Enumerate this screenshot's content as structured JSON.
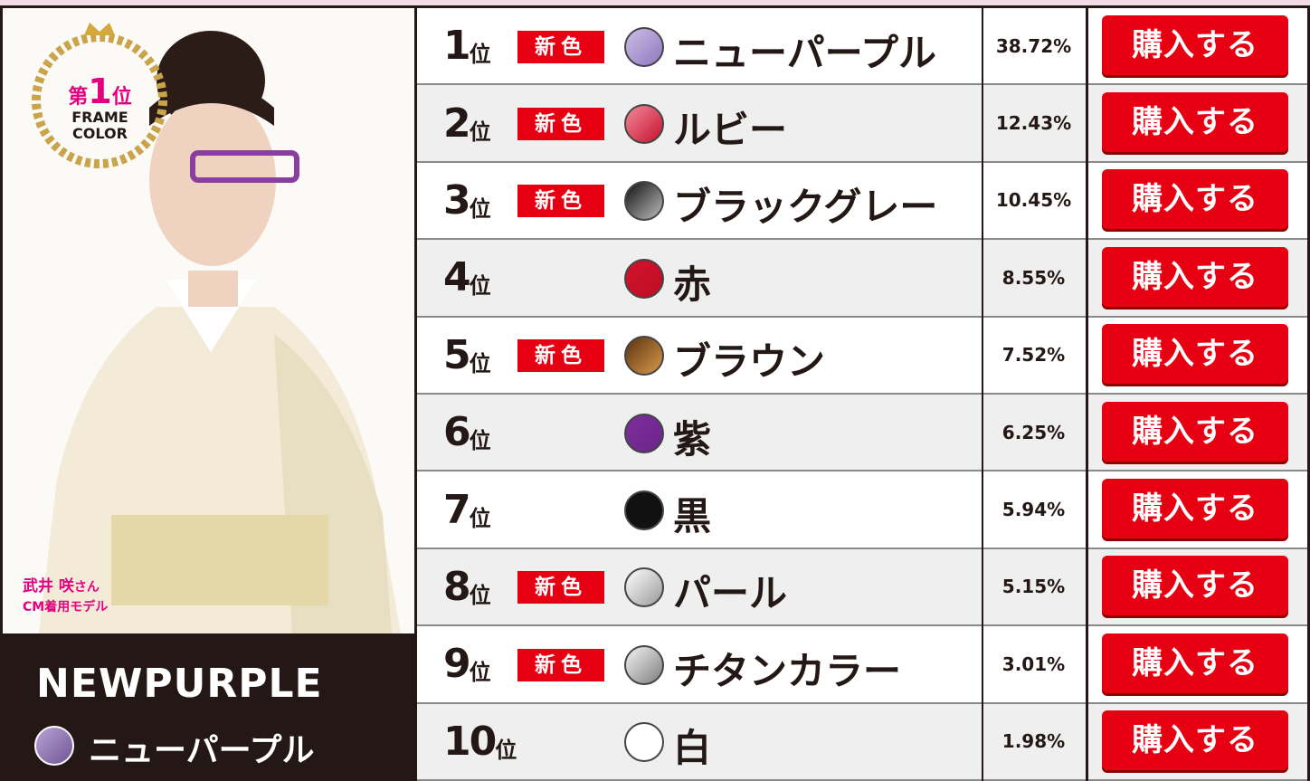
{
  "panel": {
    "award_rank_prefix": "第",
    "award_rank": "1",
    "award_rank_suffix": "位",
    "award_line1": "FRAME",
    "award_line2": "COLOR",
    "model_name": "武井 咲",
    "model_honorific": "さん",
    "model_role": "CM着用モデル",
    "featured_en": "NEWPURPLE",
    "featured_jp": "ニューパープル",
    "featured_swatch": [
      "#b9a3d4",
      "#6f5596"
    ]
  },
  "table": {
    "rank_suffix": "位",
    "button_label": "購入する",
    "rows": [
      {
        "rank": "1",
        "badge": "新色",
        "name": "ニューパープル",
        "share": "38.72%",
        "swatch": [
          "#cdbde6",
          "#8f78c0"
        ]
      },
      {
        "rank": "2",
        "badge": "新色",
        "name": "ルビー",
        "share": "12.43%",
        "swatch": [
          "#f28a9a",
          "#c8102e"
        ]
      },
      {
        "rank": "3",
        "badge": "新色",
        "name": "ブラックグレー",
        "share": "10.45%",
        "swatch": [
          "#111111",
          "#bdbdbd"
        ]
      },
      {
        "rank": "4",
        "name": "赤",
        "share": "8.55%",
        "swatch": [
          "#d0142c",
          "#c00d25"
        ]
      },
      {
        "rank": "5",
        "badge": "新色",
        "name": "ブラウン",
        "share": "7.52%",
        "swatch": [
          "#5a3210",
          "#d79a4a"
        ]
      },
      {
        "rank": "6",
        "name": "紫",
        "share": "6.25%",
        "swatch": [
          "#7d2f9c",
          "#6b2489"
        ]
      },
      {
        "rank": "7",
        "name": "黒",
        "share": "5.94%",
        "swatch": [
          "#111111",
          "#111111"
        ]
      },
      {
        "rank": "8",
        "badge": "新色",
        "name": "パール",
        "share": "5.15%",
        "swatch": [
          "#ffffff",
          "#9a9a9a"
        ]
      },
      {
        "rank": "9",
        "badge": "新色",
        "name": "チタンカラー",
        "share": "3.01%",
        "swatch": [
          "#f4f4f4",
          "#7d7d7d"
        ]
      },
      {
        "rank": "10",
        "name": "白",
        "share": "1.98%",
        "swatch": [
          "#ffffff",
          "#ffffff"
        ]
      }
    ]
  }
}
